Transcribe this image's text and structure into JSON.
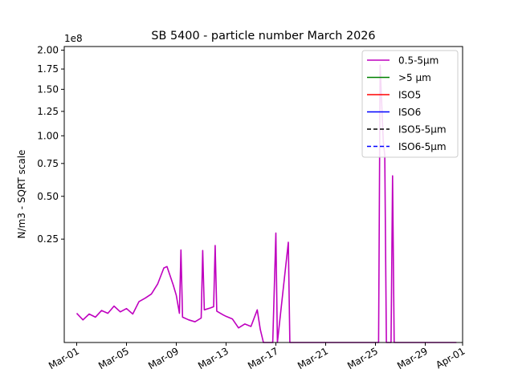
{
  "chart_data": {
    "type": "line",
    "title": "SB 5400 - particle number March 2026",
    "ylabel": "N/m3 - SQRT scale",
    "xlabel": "",
    "y_scale": "sqrt",
    "y_offset_label": "1e8",
    "ylim": [
      0,
      205000000.0
    ],
    "xlim": [
      "2026-02-28",
      "2026-04-01"
    ],
    "x_ticks": [
      "Mar-01",
      "Mar-05",
      "Mar-09",
      "Mar-13",
      "Mar-17",
      "Mar-21",
      "Mar-25",
      "Mar-29",
      "Apr-01"
    ],
    "x_tick_dates": [
      "2026-03-01",
      "2026-03-05",
      "2026-03-09",
      "2026-03-13",
      "2026-03-17",
      "2026-03-21",
      "2026-03-25",
      "2026-03-29",
      "2026-04-01"
    ],
    "y_ticks": [
      "2.00",
      "1.75",
      "1.50",
      "1.25",
      "1.00",
      "0.75",
      "0.50",
      "0.25"
    ],
    "y_tick_values": [
      200000000.0,
      175000000.0,
      150000000.0,
      125000000.0,
      100000000.0,
      75000000.0,
      50000000.0,
      25000000.0
    ],
    "legend_position": "top-right",
    "grid": false,
    "series": [
      {
        "name": "0.5-5µm",
        "color": "#bf00bf",
        "style": "solid",
        "points": [
          [
            "2026-03-01",
            2000000
          ],
          [
            "2026-03-01T12:00",
            1200000
          ],
          [
            "2026-03-02",
            1900000
          ],
          [
            "2026-03-02T12:00",
            1500000
          ],
          [
            "2026-03-03",
            2400000
          ],
          [
            "2026-03-03T12:00",
            2000000
          ],
          [
            "2026-03-04",
            3100000
          ],
          [
            "2026-03-04T12:00",
            2200000
          ],
          [
            "2026-03-05",
            2700000
          ],
          [
            "2026-03-05T12:00",
            1900000
          ],
          [
            "2026-03-06",
            3900000
          ],
          [
            "2026-03-06T12:00",
            4600000
          ],
          [
            "2026-03-07",
            5500000
          ],
          [
            "2026-03-07T12:00",
            8000000
          ],
          [
            "2026-03-08",
            13000000
          ],
          [
            "2026-03-08T06:00",
            13500000
          ],
          [
            "2026-03-08T18:00",
            7800000
          ],
          [
            "2026-03-09",
            5200000
          ],
          [
            "2026-03-09T06:00",
            2000000
          ],
          [
            "2026-03-09T09:00",
            20000000
          ],
          [
            "2026-03-09T12:00",
            1500000
          ],
          [
            "2026-03-10",
            1200000
          ],
          [
            "2026-03-10T12:00",
            1000000
          ],
          [
            "2026-03-11",
            1400000
          ],
          [
            "2026-03-11T03:00",
            19800000
          ],
          [
            "2026-03-11T06:00",
            2500000
          ],
          [
            "2026-03-11T18:00",
            2800000
          ],
          [
            "2026-03-12",
            3000000
          ],
          [
            "2026-03-12T03:00",
            22000000
          ],
          [
            "2026-03-12T06:00",
            2300000
          ],
          [
            "2026-03-12T18:00",
            1800000
          ],
          [
            "2026-03-13",
            1600000
          ],
          [
            "2026-03-13T12:00",
            1300000
          ],
          [
            "2026-03-14",
            500000
          ],
          [
            "2026-03-14T12:00",
            800000
          ],
          [
            "2026-03-15",
            600000
          ],
          [
            "2026-03-15T12:00",
            2500000
          ],
          [
            "2026-03-15T18:00",
            400000
          ],
          [
            "2026-03-16",
            0
          ],
          [
            "2026-03-16T18:00",
            0
          ],
          [
            "2026-03-17",
            28000000
          ],
          [
            "2026-03-17T03:00",
            0
          ],
          [
            "2026-03-18",
            23500000
          ],
          [
            "2026-03-18T03:00",
            0
          ],
          [
            "2026-03-22",
            0
          ],
          [
            "2026-03-25T06:00",
            0
          ],
          [
            "2026-03-25T09:00",
            180000000
          ],
          [
            "2026-03-25T15:00",
            95000000
          ],
          [
            "2026-03-25T18:00",
            82000000
          ],
          [
            "2026-03-25T21:00",
            0
          ],
          [
            "2026-03-26T06:00",
            0
          ],
          [
            "2026-03-26T09:00",
            65000000
          ],
          [
            "2026-03-26T12:00",
            0
          ],
          [
            "2026-03-31T12:00",
            0
          ]
        ]
      },
      {
        "name": ">5 µm",
        "color": "#008000",
        "style": "solid",
        "points": []
      },
      {
        "name": "ISO5",
        "color": "#ff0000",
        "style": "solid",
        "points": []
      },
      {
        "name": "ISO6",
        "color": "#0000ff",
        "style": "solid",
        "points": []
      },
      {
        "name": "ISO5-5µm",
        "color": "#000000",
        "style": "dashed",
        "points": []
      },
      {
        "name": "ISO6-5µm",
        "color": "#0000ff",
        "style": "dashed",
        "points": []
      }
    ]
  }
}
